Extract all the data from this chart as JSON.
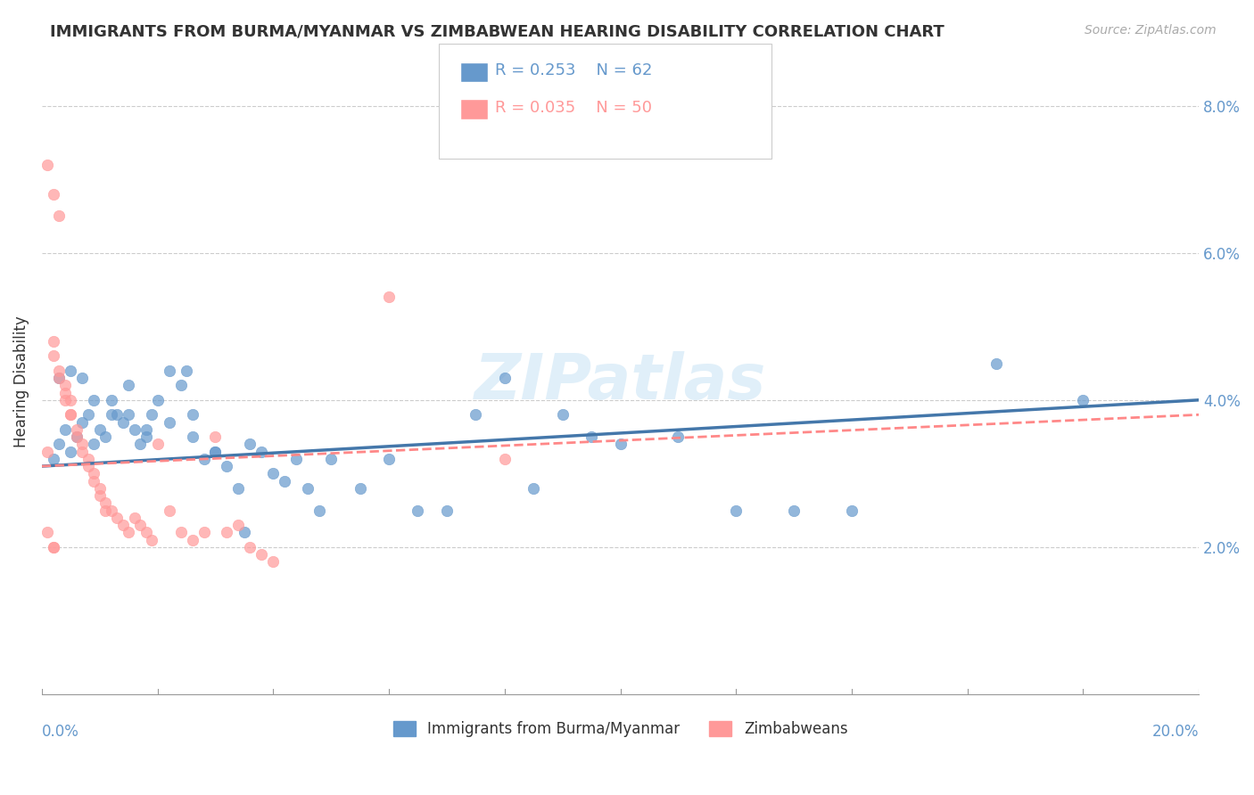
{
  "title": "IMMIGRANTS FROM BURMA/MYANMAR VS ZIMBABWEAN HEARING DISABILITY CORRELATION CHART",
  "source": "Source: ZipAtlas.com",
  "ylabel": "Hearing Disability",
  "yticks": [
    0.0,
    0.02,
    0.04,
    0.06,
    0.08
  ],
  "ytick_labels": [
    "",
    "2.0%",
    "4.0%",
    "6.0%",
    "8.0%"
  ],
  "xlim": [
    0.0,
    0.2
  ],
  "ylim": [
    0.0,
    0.085
  ],
  "color_blue": "#6699CC",
  "color_pink": "#FF9999",
  "color_blue_line": "#4477AA",
  "color_pink_line": "#FF8888",
  "color_axis": "#6699CC",
  "watermark": "ZIPatlas",
  "blue_scatter_x": [
    0.002,
    0.003,
    0.004,
    0.005,
    0.006,
    0.007,
    0.008,
    0.009,
    0.01,
    0.011,
    0.012,
    0.013,
    0.014,
    0.015,
    0.016,
    0.017,
    0.018,
    0.019,
    0.02,
    0.022,
    0.024,
    0.025,
    0.026,
    0.028,
    0.03,
    0.032,
    0.034,
    0.035,
    0.036,
    0.038,
    0.04,
    0.042,
    0.044,
    0.046,
    0.048,
    0.05,
    0.055,
    0.06,
    0.065,
    0.07,
    0.075,
    0.08,
    0.085,
    0.09,
    0.095,
    0.1,
    0.11,
    0.12,
    0.13,
    0.14,
    0.003,
    0.005,
    0.007,
    0.009,
    0.012,
    0.015,
    0.018,
    0.022,
    0.026,
    0.03,
    0.165,
    0.18
  ],
  "blue_scatter_y": [
    0.032,
    0.034,
    0.036,
    0.033,
    0.035,
    0.037,
    0.038,
    0.034,
    0.036,
    0.035,
    0.04,
    0.038,
    0.037,
    0.042,
    0.036,
    0.034,
    0.035,
    0.038,
    0.04,
    0.037,
    0.042,
    0.044,
    0.038,
    0.032,
    0.033,
    0.031,
    0.028,
    0.022,
    0.034,
    0.033,
    0.03,
    0.029,
    0.032,
    0.028,
    0.025,
    0.032,
    0.028,
    0.032,
    0.025,
    0.025,
    0.038,
    0.043,
    0.028,
    0.038,
    0.035,
    0.034,
    0.035,
    0.025,
    0.025,
    0.025,
    0.043,
    0.044,
    0.043,
    0.04,
    0.038,
    0.038,
    0.036,
    0.044,
    0.035,
    0.033,
    0.045,
    0.04
  ],
  "pink_scatter_x": [
    0.001,
    0.002,
    0.002,
    0.003,
    0.003,
    0.004,
    0.004,
    0.005,
    0.005,
    0.006,
    0.006,
    0.007,
    0.007,
    0.008,
    0.008,
    0.009,
    0.009,
    0.01,
    0.01,
    0.011,
    0.011,
    0.012,
    0.013,
    0.014,
    0.015,
    0.016,
    0.017,
    0.018,
    0.019,
    0.02,
    0.022,
    0.024,
    0.026,
    0.028,
    0.03,
    0.032,
    0.034,
    0.036,
    0.038,
    0.04,
    0.001,
    0.002,
    0.003,
    0.004,
    0.005,
    0.001,
    0.002,
    0.002,
    0.08,
    0.06
  ],
  "pink_scatter_y": [
    0.033,
    0.048,
    0.046,
    0.044,
    0.043,
    0.042,
    0.041,
    0.04,
    0.038,
    0.036,
    0.035,
    0.034,
    0.033,
    0.032,
    0.031,
    0.03,
    0.029,
    0.028,
    0.027,
    0.026,
    0.025,
    0.025,
    0.024,
    0.023,
    0.022,
    0.024,
    0.023,
    0.022,
    0.021,
    0.034,
    0.025,
    0.022,
    0.021,
    0.022,
    0.035,
    0.022,
    0.023,
    0.02,
    0.019,
    0.018,
    0.072,
    0.068,
    0.065,
    0.04,
    0.038,
    0.022,
    0.02,
    0.02,
    0.032,
    0.054
  ],
  "blue_trend_x": [
    0.0,
    0.2
  ],
  "blue_trend_y_start": 0.031,
  "blue_trend_y_end": 0.04,
  "pink_trend_y_start": 0.031,
  "pink_trend_y_end": 0.038
}
